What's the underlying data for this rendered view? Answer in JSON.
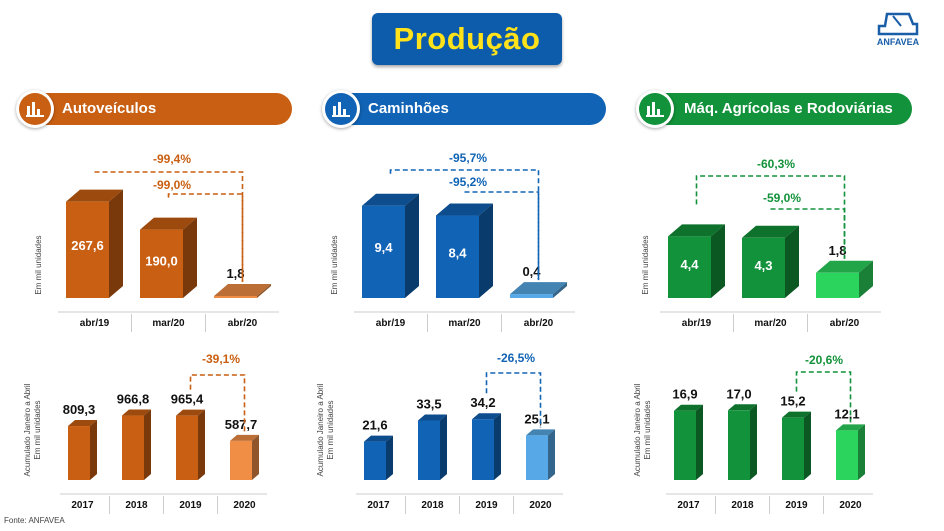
{
  "title": "Produção",
  "logo_text": "ANFAVEA",
  "source": "Fonte: ANFAVEA",
  "colors": {
    "orange": "#c95f12",
    "orange_light": "#f08e46",
    "blue": "#1163b5",
    "blue_light": "#56a9e6",
    "green": "#12923a",
    "green_light": "#2bd45c"
  },
  "panels": [
    {
      "title": "Autoveículos",
      "color": "#c95f12"
    },
    {
      "title": "Caminhões",
      "color": "#1163b5"
    },
    {
      "title": "Máq. Agrícolas e Rodoviárias",
      "color": "#12923a"
    }
  ],
  "chart_data": [
    {
      "id": "auto-monthly",
      "type": "bar",
      "title": "Autoveículos",
      "ylabel": "Em mil unidades",
      "categories": [
        "abr/19",
        "mar/20",
        "abr/20"
      ],
      "values": [
        267.6,
        190.0,
        1.8
      ],
      "labels": [
        "267,6",
        "190,0",
        "1,8"
      ],
      "ylim": [
        0,
        300
      ],
      "changes": [
        "-99,4%",
        "-99,0%"
      ]
    },
    {
      "id": "auto-ytd",
      "type": "bar",
      "title": "Autoveículos",
      "ylabel": "Acumulado Janeiro a Abril / Em mil unidades",
      "ylabel_lines": [
        "Acumulado Janeiro a Abril",
        "Em mil unidades"
      ],
      "categories": [
        "2017",
        "2018",
        "2019",
        "2020"
      ],
      "values": [
        809.3,
        966.8,
        965.4,
        587.7
      ],
      "labels": [
        "809,3",
        "966,8",
        "965,4",
        "587,7"
      ],
      "ylim": [
        0,
        1200
      ],
      "changes": [
        "-39,1%"
      ]
    },
    {
      "id": "trucks-monthly",
      "type": "bar",
      "title": "Caminhões",
      "ylabel": "Em mil unidades",
      "categories": [
        "abr/19",
        "mar/20",
        "abr/20"
      ],
      "values": [
        9.4,
        8.4,
        0.4
      ],
      "labels": [
        "9,4",
        "8,4",
        "0,4"
      ],
      "ylim": [
        0,
        11
      ],
      "changes": [
        "-95,7%",
        "-95,2%"
      ]
    },
    {
      "id": "trucks-ytd",
      "type": "bar",
      "title": "Caminhões",
      "ylabel": "Acumulado Janeiro a Abril / Em mil unidades",
      "ylabel_lines": [
        "Acumulado Janeiro a Abril",
        "Em mil unidades"
      ],
      "categories": [
        "2017",
        "2018",
        "2019",
        "2020"
      ],
      "values": [
        21.6,
        33.5,
        34.2,
        25.1
      ],
      "labels": [
        "21,6",
        "33,5",
        "34,2",
        "25,1"
      ],
      "ylim": [
        0,
        45
      ],
      "changes": [
        "-26,5%"
      ]
    },
    {
      "id": "agri-monthly",
      "type": "bar",
      "title": "Máq. Agrícolas e Rodoviárias",
      "ylabel": "Em mil unidades",
      "categories": [
        "abr/19",
        "mar/20",
        "abr/20"
      ],
      "values": [
        4.4,
        4.3,
        1.8
      ],
      "labels": [
        "4,4",
        "4,3",
        "1,8"
      ],
      "ylim": [
        0,
        7
      ],
      "changes": [
        "-60,3%",
        "-59,0%"
      ]
    },
    {
      "id": "agri-ytd",
      "type": "bar",
      "title": "Máq. Agrícolas e Rodoviárias",
      "ylabel": "Acumulado Janeiro a Abril / Em mil unidades",
      "ylabel_lines": [
        "Acumulado Janeiro a Abril",
        "Em mil unidades"
      ],
      "categories": [
        "2017",
        "2018",
        "2019",
        "2020"
      ],
      "values": [
        16.9,
        17.0,
        15.2,
        12.1
      ],
      "labels": [
        "16,9",
        "17,0",
        "15,2",
        "12,1"
      ],
      "ylim": [
        0,
        20
      ],
      "changes": [
        "-20,6%"
      ]
    }
  ]
}
